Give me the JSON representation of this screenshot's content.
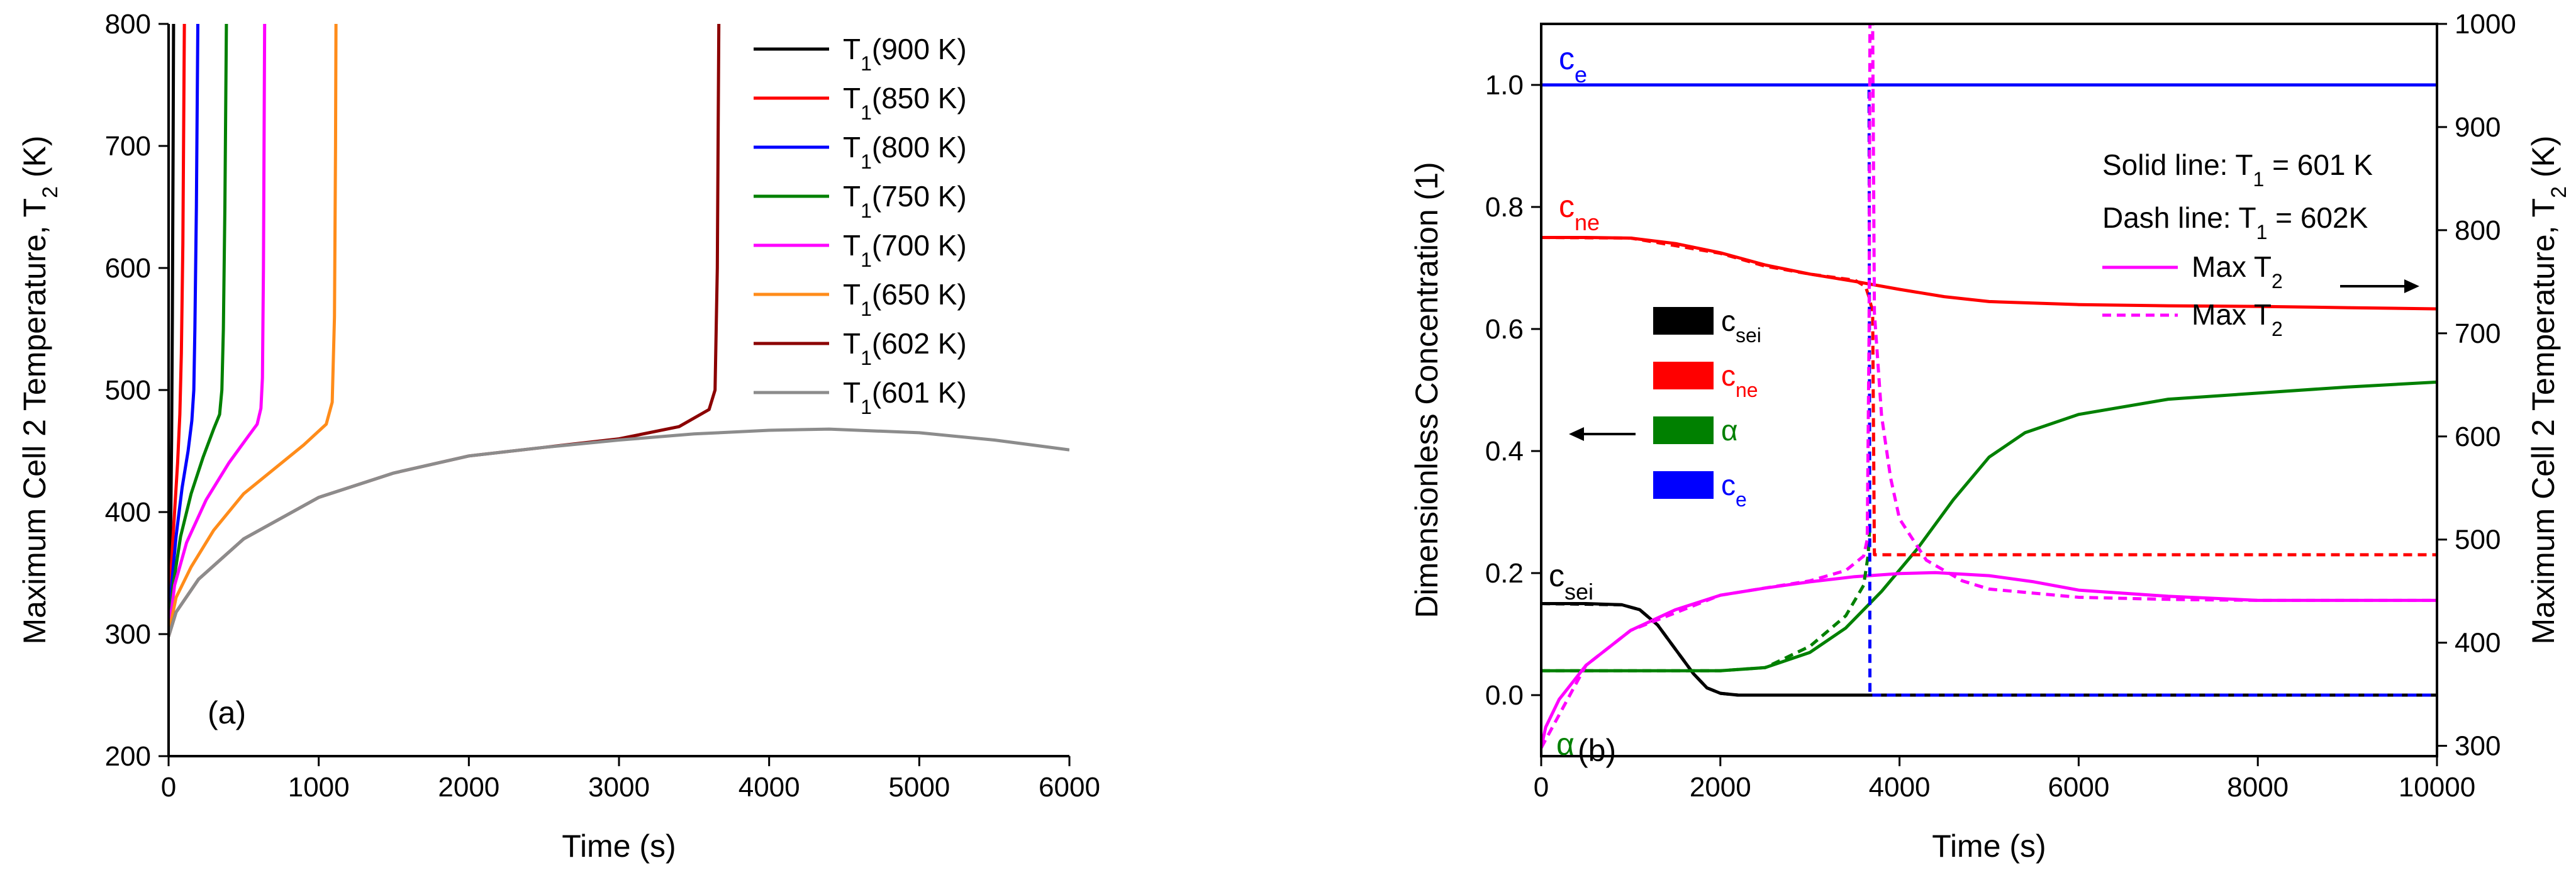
{
  "chart_data": [
    {
      "panel_label": "(a)",
      "type": "line",
      "xlabel": "Time (s)",
      "ylabel_main": "Maximum Cell 2 Temperature, T",
      "ylabel_sub": "2",
      "ylabel_tail": " (K)",
      "xlim": [
        0,
        6000
      ],
      "ylim": [
        200,
        800
      ],
      "xticks": [
        0,
        1000,
        2000,
        3000,
        4000,
        5000,
        6000
      ],
      "yticks": [
        200,
        300,
        400,
        500,
        600,
        700,
        800
      ],
      "legend_position": "top-right",
      "series": [
        {
          "name": "T1(900 K)",
          "label_main": "T",
          "label_sub": "1",
          "label_tail": "(900 K)",
          "color": "#000000",
          "points": [
            [
              0,
              300
            ],
            [
              5,
              330
            ],
            [
              10,
              362
            ],
            [
              15,
              400
            ],
            [
              20,
              460
            ],
            [
              25,
              560
            ],
            [
              30,
              700
            ],
            [
              33,
              800
            ]
          ]
        },
        {
          "name": "T1(850 K)",
          "label_main": "T",
          "label_sub": "1",
          "label_tail": "(850 K)",
          "color": "#ff0000",
          "points": [
            [
              0,
              300
            ],
            [
              10,
              335
            ],
            [
              25,
              370
            ],
            [
              40,
              400
            ],
            [
              60,
              440
            ],
            [
              75,
              480
            ],
            [
              85,
              530
            ],
            [
              95,
              620
            ],
            [
              105,
              800
            ]
          ]
        },
        {
          "name": "T1(800 K)",
          "label_main": "T",
          "label_sub": "1",
          "label_tail": "(800 K)",
          "color": "#0000ff",
          "points": [
            [
              0,
              300
            ],
            [
              20,
              340
            ],
            [
              50,
              380
            ],
            [
              90,
              420
            ],
            [
              130,
              450
            ],
            [
              155,
              475
            ],
            [
              168,
              500
            ],
            [
              175,
              550
            ],
            [
              185,
              650
            ],
            [
              195,
              800
            ]
          ]
        },
        {
          "name": "T1(750 K)",
          "label_main": "T",
          "label_sub": "1",
          "label_tail": "(750 K)",
          "color": "#008000",
          "points": [
            [
              0,
              300
            ],
            [
              30,
              340
            ],
            [
              80,
              380
            ],
            [
              150,
              415
            ],
            [
              230,
              445
            ],
            [
              300,
              468
            ],
            [
              340,
              480
            ],
            [
              355,
              500
            ],
            [
              365,
              550
            ],
            [
              375,
              650
            ],
            [
              385,
              800
            ]
          ]
        },
        {
          "name": "T1(700 K)",
          "label_main": "T",
          "label_sub": "1",
          "label_tail": "(700 K)",
          "color": "#ff00ff",
          "points": [
            [
              0,
              300
            ],
            [
              40,
              340
            ],
            [
              120,
              375
            ],
            [
              250,
              410
            ],
            [
              400,
              440
            ],
            [
              530,
              462
            ],
            [
              590,
              472
            ],
            [
              615,
              485
            ],
            [
              625,
              510
            ],
            [
              632,
              600
            ],
            [
              640,
              800
            ]
          ]
        },
        {
          "name": "T1(650 K)",
          "label_main": "T",
          "label_sub": "1",
          "label_tail": "(650 K)",
          "color": "#ff8c1a",
          "points": [
            [
              0,
              300
            ],
            [
              50,
              330
            ],
            [
              150,
              355
            ],
            [
              300,
              385
            ],
            [
              500,
              415
            ],
            [
              700,
              435
            ],
            [
              900,
              455
            ],
            [
              1050,
              472
            ],
            [
              1090,
              490
            ],
            [
              1105,
              560
            ],
            [
              1112,
              700
            ],
            [
              1115,
              800
            ]
          ]
        },
        {
          "name": "T1(602 K)",
          "label_main": "T",
          "label_sub": "1",
          "label_tail": "(602 K)",
          "color": "#8b0000",
          "points": [
            [
              0,
              298
            ],
            [
              50,
              318
            ],
            [
              200,
              345
            ],
            [
              500,
              378
            ],
            [
              1000,
              412
            ],
            [
              1500,
              432
            ],
            [
              2000,
              446
            ],
            [
              2500,
              453
            ],
            [
              3000,
              460
            ],
            [
              3400,
              470
            ],
            [
              3600,
              484
            ],
            [
              3640,
              500
            ],
            [
              3655,
              600
            ],
            [
              3665,
              800
            ]
          ]
        },
        {
          "name": "T1(601 K)",
          "label_main": "T",
          "label_sub": "1",
          "label_tail": "(601 K)",
          "color": "#8c8c8c",
          "points": [
            [
              0,
              298
            ],
            [
              50,
              318
            ],
            [
              200,
              345
            ],
            [
              500,
              378
            ],
            [
              1000,
              412
            ],
            [
              1500,
              432
            ],
            [
              2000,
              446
            ],
            [
              2500,
              453
            ],
            [
              3000,
              459
            ],
            [
              3500,
              464
            ],
            [
              4000,
              467
            ],
            [
              4400,
              468
            ],
            [
              5000,
              465
            ],
            [
              5500,
              459
            ],
            [
              6000,
              451
            ]
          ]
        }
      ]
    },
    {
      "panel_label": "(b)",
      "type": "line",
      "xlabel": "Time (s)",
      "ylabel_left": "Dimensionless Concentration (1)",
      "ylabel_right_main": "Maximum Cell 2 Temperature, T",
      "ylabel_right_sub": "2",
      "ylabel_right_tail": " (K)",
      "xlim": [
        0,
        10000
      ],
      "ylim_left": [
        -0.1,
        1.1
      ],
      "ylim_right": [
        290,
        1000
      ],
      "xticks": [
        0,
        2000,
        4000,
        6000,
        8000,
        10000
      ],
      "yticks_left": [
        "0.0",
        "0.2",
        "0.4",
        "0.6",
        "0.8",
        "1.0"
      ],
      "yticks_right": [
        300,
        400,
        500,
        600,
        700,
        800,
        900,
        1000
      ],
      "annotations": {
        "solid_main": "Solid line: T",
        "solid_sub": "1",
        "solid_tail": " = 601 K",
        "dash_main": "Dash line: T",
        "dash_sub": "1",
        "dash_tail": " = 602K",
        "max_main": "Max T",
        "max_sub": "2"
      },
      "inline_labels": {
        "ce_main": "c",
        "ce_sub": "e",
        "cne_main": "c",
        "cne_sub": "ne",
        "csei_main": "c",
        "csei_sub": "sei",
        "alpha": "α"
      },
      "legend_boxes": [
        {
          "main": "c",
          "sub": "sei",
          "color": "#000000"
        },
        {
          "main": "c",
          "sub": "ne",
          "color": "#ff0000"
        },
        {
          "main": "α",
          "sub": "",
          "color": "#008000"
        },
        {
          "main": "c",
          "sub": "e",
          "color": "#0000ff"
        }
      ],
      "series": [
        {
          "name": "ce (601 K)",
          "axis": "left",
          "style": "solid",
          "color": "#0000ff",
          "points": [
            [
              0,
              1.0
            ],
            [
              10000,
              1.0
            ]
          ]
        },
        {
          "name": "cne (601 K)",
          "axis": "left",
          "style": "solid",
          "color": "#ff0000",
          "points": [
            [
              0,
              0.75
            ],
            [
              500,
              0.75
            ],
            [
              1000,
              0.749
            ],
            [
              1500,
              0.74
            ],
            [
              2000,
              0.725
            ],
            [
              2500,
              0.705
            ],
            [
              3000,
              0.69
            ],
            [
              3500,
              0.678
            ],
            [
              4000,
              0.665
            ],
            [
              4500,
              0.653
            ],
            [
              5000,
              0.645
            ],
            [
              6000,
              0.64
            ],
            [
              7000,
              0.638
            ],
            [
              8000,
              0.637
            ],
            [
              9000,
              0.635
            ],
            [
              10000,
              0.633
            ]
          ]
        },
        {
          "name": "csei (601 K)",
          "axis": "left",
          "style": "solid",
          "color": "#000000",
          "points": [
            [
              0,
              0.15
            ],
            [
              500,
              0.15
            ],
            [
              900,
              0.148
            ],
            [
              1100,
              0.14
            ],
            [
              1300,
              0.115
            ],
            [
              1500,
              0.075
            ],
            [
              1700,
              0.035
            ],
            [
              1850,
              0.012
            ],
            [
              2000,
              0.003
            ],
            [
              2200,
              0.0
            ],
            [
              10000,
              0.0
            ]
          ]
        },
        {
          "name": "alpha (601 K)",
          "axis": "left",
          "style": "solid",
          "color": "#008000",
          "points": [
            [
              0,
              0.04
            ],
            [
              1500,
              0.04
            ],
            [
              2000,
              0.04
            ],
            [
              2500,
              0.045
            ],
            [
              3000,
              0.07
            ],
            [
              3400,
              0.11
            ],
            [
              3800,
              0.17
            ],
            [
              4200,
              0.24
            ],
            [
              4600,
              0.32
            ],
            [
              5000,
              0.39
            ],
            [
              5400,
              0.43
            ],
            [
              6000,
              0.46
            ],
            [
              7000,
              0.485
            ],
            [
              8000,
              0.495
            ],
            [
              9000,
              0.505
            ],
            [
              10000,
              0.513
            ]
          ]
        },
        {
          "name": "Max T2 (601 K)",
          "axis": "right",
          "style": "solid",
          "color": "#ff00ff",
          "points": [
            [
              0,
              298
            ],
            [
              50,
              318
            ],
            [
              200,
              345
            ],
            [
              500,
              378
            ],
            [
              1000,
              412
            ],
            [
              1500,
              432
            ],
            [
              2000,
              446
            ],
            [
              2500,
              453
            ],
            [
              3000,
              459
            ],
            [
              3500,
              464
            ],
            [
              4000,
              467
            ],
            [
              4400,
              468
            ],
            [
              5000,
              465
            ],
            [
              5500,
              459
            ],
            [
              6000,
              451
            ],
            [
              7000,
              445
            ],
            [
              8000,
              441
            ],
            [
              9000,
              441
            ],
            [
              10000,
              441
            ]
          ]
        },
        {
          "name": "cne (602 K)",
          "axis": "left",
          "style": "dash",
          "color": "#ff0000",
          "points": [
            [
              0,
              0.75
            ],
            [
              1000,
              0.749
            ],
            [
              2000,
              0.724
            ],
            [
              2500,
              0.703
            ],
            [
              3000,
              0.69
            ],
            [
              3500,
              0.68
            ],
            [
              3620,
              0.67
            ],
            [
              3665,
              0.65
            ],
            [
              3680,
              0.64
            ],
            [
              3700,
              0.63
            ],
            [
              3720,
              0.23
            ],
            [
              10000,
              0.23
            ]
          ]
        },
        {
          "name": "csei (602 K)",
          "axis": "left",
          "style": "dash",
          "color": "#000000",
          "points": [
            [
              0,
              0.15
            ],
            [
              900,
              0.148
            ],
            [
              1100,
              0.14
            ],
            [
              1300,
              0.115
            ],
            [
              1500,
              0.075
            ],
            [
              1700,
              0.035
            ],
            [
              1850,
              0.012
            ],
            [
              2000,
              0.003
            ],
            [
              2200,
              0.0
            ],
            [
              10000,
              0.0
            ]
          ]
        },
        {
          "name": "alpha (602 K)",
          "axis": "left",
          "style": "dash",
          "color": "#008000",
          "points": [
            [
              0,
              0.04
            ],
            [
              2000,
              0.04
            ],
            [
              2500,
              0.045
            ],
            [
              3000,
              0.08
            ],
            [
              3400,
              0.13
            ],
            [
              3600,
              0.18
            ],
            [
              3650,
              0.23
            ],
            [
              3670,
              0.28
            ]
          ]
        },
        {
          "name": "ce (602 K)",
          "axis": "left",
          "style": "dash",
          "color": "#0000ff",
          "points": [
            [
              0,
              1.0
            ],
            [
              3660,
              1.0
            ],
            [
              3670,
              0.0
            ],
            [
              10000,
              0.0
            ]
          ]
        },
        {
          "name": "Max T2 (602 K)",
          "axis": "right",
          "style": "dash",
          "color": "#ff00ff",
          "points": [
            [
              0,
              298
            ],
            [
              500,
              378
            ],
            [
              1000,
              412
            ],
            [
              2000,
              446
            ],
            [
              3000,
              460
            ],
            [
              3400,
              470
            ],
            [
              3600,
              484
            ],
            [
              3640,
              500
            ],
            [
              3660,
              700
            ],
            [
              3670,
              1000
            ],
            [
              3700,
              1000
            ],
            [
              3720,
              720
            ],
            [
              3800,
              620
            ],
            [
              3900,
              560
            ],
            [
              4000,
              520
            ],
            [
              4300,
              480
            ],
            [
              4700,
              460
            ],
            [
              5000,
              452
            ],
            [
              6000,
              444
            ],
            [
              7000,
              442
            ],
            [
              8000,
              441
            ],
            [
              10000,
              441
            ]
          ]
        }
      ]
    }
  ]
}
